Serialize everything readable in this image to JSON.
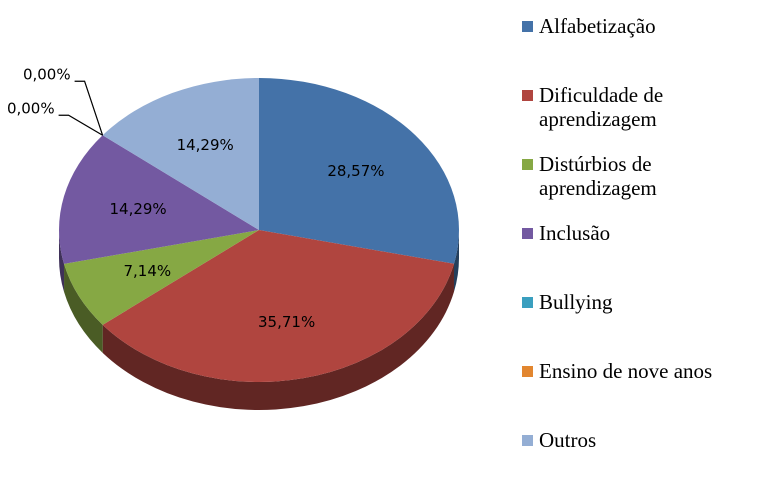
{
  "chart_data": {
    "type": "pie",
    "title": "",
    "three_d": true,
    "legend_position": "right",
    "categories": [
      "Alfabetização",
      "Dificuldade de aprendizagem",
      "Distúrbios de aprendizagem",
      "Inclusão",
      "Bullying",
      "Ensino de nove anos",
      "Outros"
    ],
    "values": [
      28.57,
      35.71,
      7.14,
      14.29,
      0.0,
      0.0,
      14.29
    ],
    "labels": [
      "28,57%",
      "35,71%",
      "7,14%",
      "14,29%",
      "0,00%",
      "0,00%",
      "14,29%"
    ],
    "colors": [
      "#4472a8",
      "#b0453f",
      "#86a844",
      "#7359a1",
      "#3a9fbf",
      "#e2862f",
      "#94aed4"
    ],
    "unit": "%"
  }
}
